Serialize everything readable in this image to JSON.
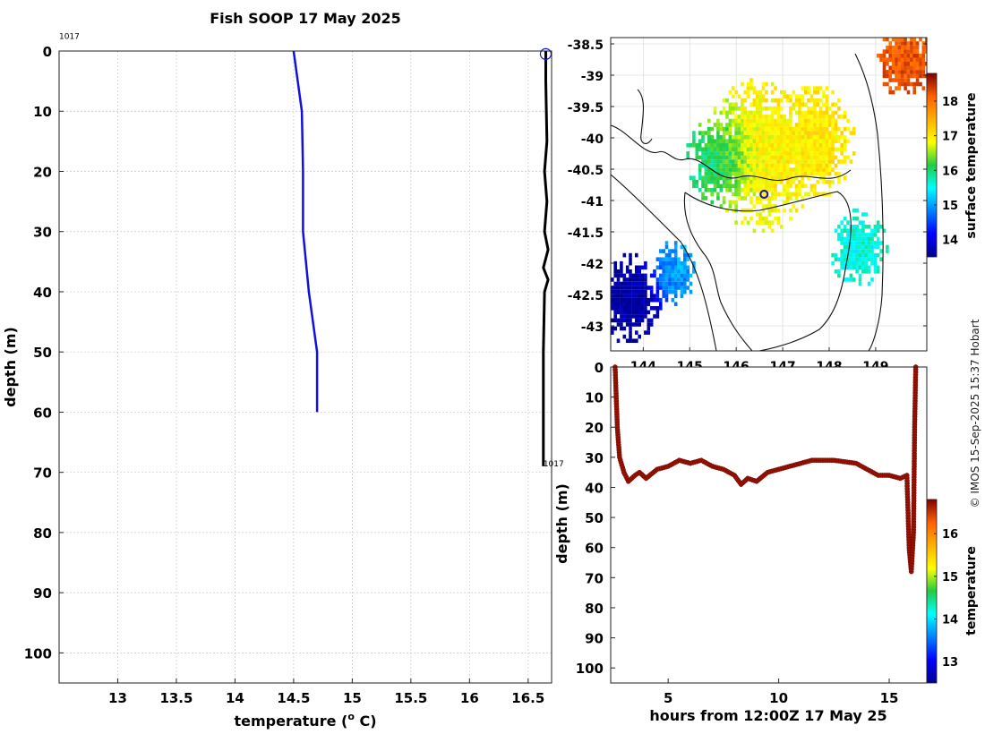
{
  "figure_title": "Fish SOOP 17 May 2025",
  "credit": "© IMOS 15-Sep-2025 15:37 Hobart",
  "chart_data": [
    {
      "id": "profile",
      "type": "line",
      "xlabel": "temperature (",
      "xlabel_sup": "o",
      "xlabel_tail": " C)",
      "ylabel": "depth (m)",
      "xlim": [
        12.5,
        16.7
      ],
      "ylim": [
        0,
        105
      ],
      "xticks": [
        13,
        13.5,
        14,
        14.5,
        15,
        15.5,
        16,
        16.5
      ],
      "yticks": [
        0,
        10,
        20,
        30,
        40,
        50,
        60,
        70,
        80,
        90,
        100
      ],
      "grid": true,
      "annotations": [
        {
          "text": "1017",
          "x": 12.5,
          "y": -2
        },
        {
          "text": "1017",
          "x": 16.63,
          "y": 69
        }
      ],
      "series": [
        {
          "name": "temperature profile",
          "color": "#1010e0",
          "points": [
            [
              14.5,
              0
            ],
            [
              14.57,
              10
            ],
            [
              14.58,
              20
            ],
            [
              14.58,
              30
            ],
            [
              14.63,
              40
            ],
            [
              14.7,
              50
            ],
            [
              14.7,
              60
            ]
          ]
        },
        {
          "name": "vessel track",
          "color": "#000000",
          "points": [
            [
              16.65,
              0
            ],
            [
              16.65,
              5
            ],
            [
              16.66,
              15
            ],
            [
              16.64,
              20
            ],
            [
              16.66,
              25
            ],
            [
              16.64,
              30
            ],
            [
              16.67,
              33
            ],
            [
              16.63,
              36
            ],
            [
              16.67,
              38
            ],
            [
              16.64,
              40
            ],
            [
              16.63,
              50
            ],
            [
              16.63,
              60
            ],
            [
              16.63,
              69
            ]
          ]
        }
      ],
      "marker": {
        "x": 16.65,
        "y": 0.5,
        "shape": "circle",
        "color": "#1010e0"
      }
    },
    {
      "id": "map",
      "type": "heatmap",
      "xlim": [
        143.3,
        150.1
      ],
      "ylim": [
        -43.4,
        -38.4
      ],
      "xticks": [
        144,
        145,
        146,
        147,
        148,
        149
      ],
      "yticks": [
        -38.5,
        -39,
        -39.5,
        -40,
        -40.5,
        -41,
        -41.5,
        -42,
        -42.5,
        -43
      ],
      "colorbar": {
        "label": "surface temperature",
        "range": [
          13.5,
          18.8
        ],
        "ticks": [
          14,
          15,
          16,
          17,
          18
        ]
      },
      "marker": {
        "lon": 146.6,
        "lat": -40.9,
        "shape": "circle",
        "color": "#1010c0"
      },
      "surface_temperature_patches": [
        {
          "lon": 146.5,
          "lat": -40.3,
          "value": 16.9,
          "spread": 1.2
        },
        {
          "lon": 145.6,
          "lat": -40.4,
          "value": 15.8,
          "spread": 0.7
        },
        {
          "lon": 147.6,
          "lat": -40.1,
          "value": 17.0,
          "spread": 0.9
        },
        {
          "lon": 148.6,
          "lat": -41.8,
          "value": 15.6,
          "spread": 0.6
        },
        {
          "lon": 149.6,
          "lat": -38.8,
          "value": 18.2,
          "spread": 0.6
        },
        {
          "lon": 143.7,
          "lat": -42.6,
          "value": 13.6,
          "spread": 0.7
        },
        {
          "lon": 144.6,
          "lat": -42.2,
          "value": 15.0,
          "spread": 0.5
        }
      ]
    },
    {
      "id": "depth_time",
      "type": "scatter",
      "xlabel": "hours from 12:00Z 17 May 25",
      "ylabel": "depth (m)",
      "xlim": [
        2.4,
        16.7
      ],
      "ylim": [
        0,
        105
      ],
      "xticks": [
        5,
        10,
        15
      ],
      "yticks": [
        0,
        10,
        20,
        30,
        40,
        50,
        60,
        70,
        80,
        90,
        100
      ],
      "colorbar": {
        "label": "temperature",
        "range": [
          12.5,
          16.8
        ],
        "ticks": [
          13,
          14,
          15,
          16
        ]
      },
      "point_color_value": 16.7,
      "points": [
        [
          2.6,
          0
        ],
        [
          2.7,
          20
        ],
        [
          2.8,
          30
        ],
        [
          3.0,
          35
        ],
        [
          3.2,
          38
        ],
        [
          3.5,
          36
        ],
        [
          3.7,
          35
        ],
        [
          4.0,
          37
        ],
        [
          4.5,
          34
        ],
        [
          5.0,
          33
        ],
        [
          5.5,
          31
        ],
        [
          6.0,
          32
        ],
        [
          6.5,
          31
        ],
        [
          7.0,
          33
        ],
        [
          7.5,
          34
        ],
        [
          8.0,
          36
        ],
        [
          8.3,
          39
        ],
        [
          8.6,
          37
        ],
        [
          9.0,
          38
        ],
        [
          9.5,
          35
        ],
        [
          10.0,
          34
        ],
        [
          10.5,
          33
        ],
        [
          11.0,
          32
        ],
        [
          11.5,
          31
        ],
        [
          12.0,
          31
        ],
        [
          12.5,
          31
        ],
        [
          13.0,
          31.5
        ],
        [
          13.5,
          32
        ],
        [
          14.0,
          34
        ],
        [
          14.5,
          36
        ],
        [
          15.0,
          36
        ],
        [
          15.5,
          37
        ],
        [
          15.8,
          36
        ],
        [
          15.9,
          60
        ],
        [
          16.0,
          68
        ],
        [
          16.1,
          55
        ],
        [
          16.15,
          20
        ],
        [
          16.2,
          0
        ]
      ]
    }
  ]
}
